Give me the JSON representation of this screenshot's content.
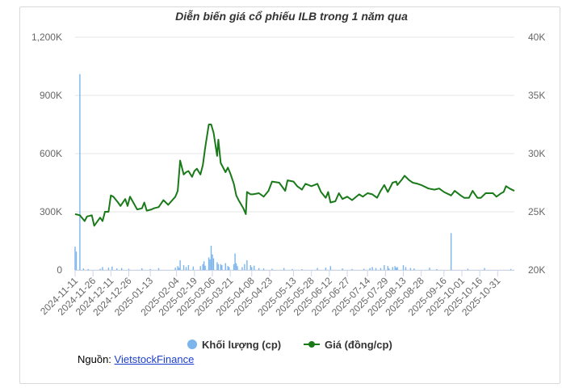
{
  "chart_data": {
    "type": "line",
    "title": "Diễn biến giá cổ phiếu ILB trong 1 năm qua",
    "y_left_ticks": [
      "0",
      "300K",
      "600K",
      "900K",
      "1,200K"
    ],
    "y_left_range": [
      0,
      1200000
    ],
    "y_right_ticks": [
      "20K",
      "25K",
      "30K",
      "35K",
      "40K"
    ],
    "y_right_range": [
      20000,
      40000
    ],
    "x_tick_labels": [
      "2024-11-11",
      "2024-11-26",
      "2024-12-11",
      "2024-12-26",
      "2025-01-13",
      "2025-02-04",
      "2025-02-19",
      "2025-03-06",
      "2025-03-21",
      "2025-04-08",
      "2025-04-23",
      "2025-05-13",
      "2025-05-28",
      "2025-06-12",
      "2025-06-27",
      "2025-07-14",
      "2025-07-29",
      "2025-08-13",
      "2025-08-28",
      "2025-09-16",
      "2025-10-01",
      "2025-10-16",
      "2025-10-31"
    ],
    "x_range": [
      "2024-11-11",
      "2025-11-14"
    ],
    "grid": true,
    "legend_position": "bottom",
    "series": [
      {
        "name": "Khối lượng (cp)",
        "type": "bar",
        "color": "#7cb5ec",
        "axis": "left",
        "points": [
          [
            "2024-11-11",
            120000
          ],
          [
            "2024-11-12",
            95000
          ],
          [
            "2024-11-15",
            1010000
          ],
          [
            "2024-11-18",
            8000
          ],
          [
            "2024-11-22",
            5000
          ],
          [
            "2024-12-02",
            6000
          ],
          [
            "2024-12-04",
            15000
          ],
          [
            "2024-12-09",
            12000
          ],
          [
            "2024-12-12",
            18000
          ],
          [
            "2024-12-16",
            8000
          ],
          [
            "2024-12-20",
            10000
          ],
          [
            "2024-12-26",
            6000
          ],
          [
            "2025-01-06",
            9000
          ],
          [
            "2025-01-13",
            5000
          ],
          [
            "2025-01-20",
            10000
          ],
          [
            "2025-02-03",
            12000
          ],
          [
            "2025-02-05",
            20000
          ],
          [
            "2025-02-06",
            12000
          ],
          [
            "2025-02-07",
            50000
          ],
          [
            "2025-02-10",
            25000
          ],
          [
            "2025-02-12",
            15000
          ],
          [
            "2025-02-14",
            25000
          ],
          [
            "2025-02-18",
            18000
          ],
          [
            "2025-02-24",
            20000
          ],
          [
            "2025-02-26",
            30000
          ],
          [
            "2025-02-27",
            45000
          ],
          [
            "2025-02-28",
            22000
          ],
          [
            "2025-03-03",
            65000
          ],
          [
            "2025-03-04",
            55000
          ],
          [
            "2025-03-05",
            125000
          ],
          [
            "2025-03-06",
            80000
          ],
          [
            "2025-03-07",
            60000
          ],
          [
            "2025-03-10",
            40000
          ],
          [
            "2025-03-11",
            30000
          ],
          [
            "2025-03-13",
            30000
          ],
          [
            "2025-03-14",
            25000
          ],
          [
            "2025-03-17",
            35000
          ],
          [
            "2025-03-19",
            20000
          ],
          [
            "2025-03-20",
            15000
          ],
          [
            "2025-03-24",
            30000
          ],
          [
            "2025-03-25",
            85000
          ],
          [
            "2025-03-26",
            35000
          ],
          [
            "2025-03-27",
            20000
          ],
          [
            "2025-03-31",
            15000
          ],
          [
            "2025-04-02",
            30000
          ],
          [
            "2025-04-04",
            50000
          ],
          [
            "2025-04-07",
            25000
          ],
          [
            "2025-04-08",
            15000
          ],
          [
            "2025-04-10",
            22000
          ],
          [
            "2025-04-14",
            10000
          ],
          [
            "2025-04-18",
            8000
          ],
          [
            "2025-04-25",
            6000
          ],
          [
            "2025-05-05",
            10000
          ],
          [
            "2025-05-12",
            5000
          ],
          [
            "2025-05-20",
            4000
          ],
          [
            "2025-06-02",
            10000
          ],
          [
            "2025-06-09",
            12000
          ],
          [
            "2025-06-13",
            20000
          ],
          [
            "2025-06-23",
            8000
          ],
          [
            "2025-07-01",
            5000
          ],
          [
            "2025-07-11",
            6000
          ],
          [
            "2025-07-16",
            10000
          ],
          [
            "2025-07-18",
            15000
          ],
          [
            "2025-07-21",
            10000
          ],
          [
            "2025-07-25",
            10000
          ],
          [
            "2025-07-28",
            25000
          ],
          [
            "2025-07-31",
            20000
          ],
          [
            "2025-08-01",
            8000
          ],
          [
            "2025-08-04",
            15000
          ],
          [
            "2025-08-06",
            20000
          ],
          [
            "2025-08-07",
            12000
          ],
          [
            "2025-08-08",
            15000
          ],
          [
            "2025-08-13",
            25000
          ],
          [
            "2025-08-15",
            15000
          ],
          [
            "2025-08-19",
            10000
          ],
          [
            "2025-08-22",
            8000
          ],
          [
            "2025-09-04",
            12000
          ],
          [
            "2025-09-10",
            5000
          ],
          [
            "2025-09-22",
            190000
          ],
          [
            "2025-10-06",
            6000
          ],
          [
            "2025-10-20",
            10000
          ],
          [
            "2025-11-11",
            5000
          ]
        ]
      },
      {
        "name": "Giá (đồng/cp)",
        "type": "line",
        "color": "#1a7a1a",
        "axis": "right",
        "points": [
          [
            "2024-11-11",
            24800
          ],
          [
            "2024-11-15",
            24700
          ],
          [
            "2024-11-19",
            24200
          ],
          [
            "2024-11-21",
            24600
          ],
          [
            "2024-11-25",
            24700
          ],
          [
            "2024-11-27",
            23800
          ],
          [
            "2024-12-02",
            24500
          ],
          [
            "2024-12-04",
            24200
          ],
          [
            "2024-12-06",
            25000
          ],
          [
            "2024-12-09",
            25000
          ],
          [
            "2024-12-11",
            26400
          ],
          [
            "2024-12-13",
            26300
          ],
          [
            "2024-12-17",
            25800
          ],
          [
            "2024-12-19",
            25500
          ],
          [
            "2024-12-23",
            26100
          ],
          [
            "2024-12-25",
            25500
          ],
          [
            "2024-12-27",
            26300
          ],
          [
            "2025-01-02",
            25200
          ],
          [
            "2025-01-06",
            25300
          ],
          [
            "2025-01-08",
            25800
          ],
          [
            "2025-01-10",
            25100
          ],
          [
            "2025-01-14",
            25200
          ],
          [
            "2025-01-16",
            25300
          ],
          [
            "2025-01-20",
            25400
          ],
          [
            "2025-01-24",
            26000
          ],
          [
            "2025-01-28",
            25600
          ],
          [
            "2025-02-03",
            26300
          ],
          [
            "2025-02-05",
            26800
          ],
          [
            "2025-02-07",
            29400
          ],
          [
            "2025-02-10",
            28200
          ],
          [
            "2025-02-12",
            28400
          ],
          [
            "2025-02-14",
            28500
          ],
          [
            "2025-02-17",
            28000
          ],
          [
            "2025-02-19",
            28500
          ],
          [
            "2025-02-21",
            28700
          ],
          [
            "2025-02-24",
            28200
          ],
          [
            "2025-02-26",
            29000
          ],
          [
            "2025-02-28",
            30500
          ],
          [
            "2025-03-03",
            32500
          ],
          [
            "2025-03-05",
            32500
          ],
          [
            "2025-03-07",
            31800
          ],
          [
            "2025-03-10",
            29800
          ],
          [
            "2025-03-11",
            31200
          ],
          [
            "2025-03-13",
            29200
          ],
          [
            "2025-03-17",
            28400
          ],
          [
            "2025-03-19",
            28800
          ],
          [
            "2025-03-21",
            28300
          ],
          [
            "2025-03-24",
            27400
          ],
          [
            "2025-03-26",
            26400
          ],
          [
            "2025-03-28",
            26000
          ],
          [
            "2025-04-01",
            25300
          ],
          [
            "2025-04-03",
            24800
          ],
          [
            "2025-04-04",
            26700
          ],
          [
            "2025-04-07",
            26500
          ],
          [
            "2025-04-09",
            26500
          ],
          [
            "2025-04-14",
            26600
          ],
          [
            "2025-04-18",
            26300
          ],
          [
            "2025-04-22",
            26800
          ],
          [
            "2025-04-25",
            27600
          ],
          [
            "2025-05-01",
            27500
          ],
          [
            "2025-05-06",
            26800
          ],
          [
            "2025-05-08",
            27700
          ],
          [
            "2025-05-13",
            27600
          ],
          [
            "2025-05-16",
            27200
          ],
          [
            "2025-05-20",
            26900
          ],
          [
            "2025-05-23",
            27400
          ],
          [
            "2025-05-28",
            27200
          ],
          [
            "2025-06-02",
            27400
          ],
          [
            "2025-06-05",
            26700
          ],
          [
            "2025-06-09",
            26200
          ],
          [
            "2025-06-11",
            26700
          ],
          [
            "2025-06-13",
            25800
          ],
          [
            "2025-06-17",
            25900
          ],
          [
            "2025-06-20",
            26600
          ],
          [
            "2025-06-23",
            26100
          ],
          [
            "2025-06-27",
            26300
          ],
          [
            "2025-07-01",
            26000
          ],
          [
            "2025-07-07",
            26500
          ],
          [
            "2025-07-10",
            26300
          ],
          [
            "2025-07-14",
            26600
          ],
          [
            "2025-07-18",
            26500
          ],
          [
            "2025-07-22",
            26200
          ],
          [
            "2025-07-25",
            26800
          ],
          [
            "2025-07-28",
            27300
          ],
          [
            "2025-07-31",
            26700
          ],
          [
            "2025-08-04",
            27500
          ],
          [
            "2025-08-07",
            27600
          ],
          [
            "2025-08-08",
            27300
          ],
          [
            "2025-08-12",
            27800
          ],
          [
            "2025-08-14",
            28100
          ],
          [
            "2025-08-18",
            27700
          ],
          [
            "2025-08-21",
            27500
          ],
          [
            "2025-08-25",
            27400
          ],
          [
            "2025-08-28",
            27300
          ],
          [
            "2025-09-03",
            27000
          ],
          [
            "2025-09-08",
            26900
          ],
          [
            "2025-09-12",
            27000
          ],
          [
            "2025-09-16",
            26700
          ],
          [
            "2025-09-22",
            26400
          ],
          [
            "2025-09-25",
            26800
          ],
          [
            "2025-09-30",
            26400
          ],
          [
            "2025-10-03",
            26200
          ],
          [
            "2025-10-07",
            26200
          ],
          [
            "2025-10-10",
            26800
          ],
          [
            "2025-10-14",
            26200
          ],
          [
            "2025-10-17",
            26200
          ],
          [
            "2025-10-21",
            26600
          ],
          [
            "2025-10-27",
            26600
          ],
          [
            "2025-10-30",
            26300
          ],
          [
            "2025-11-03",
            26600
          ],
          [
            "2025-11-05",
            26700
          ],
          [
            "2025-11-07",
            27200
          ],
          [
            "2025-11-10",
            27000
          ],
          [
            "2025-11-14",
            26800
          ]
        ]
      }
    ]
  },
  "source": {
    "label": "Nguồn: ",
    "link_text": "VietstockFinance"
  }
}
